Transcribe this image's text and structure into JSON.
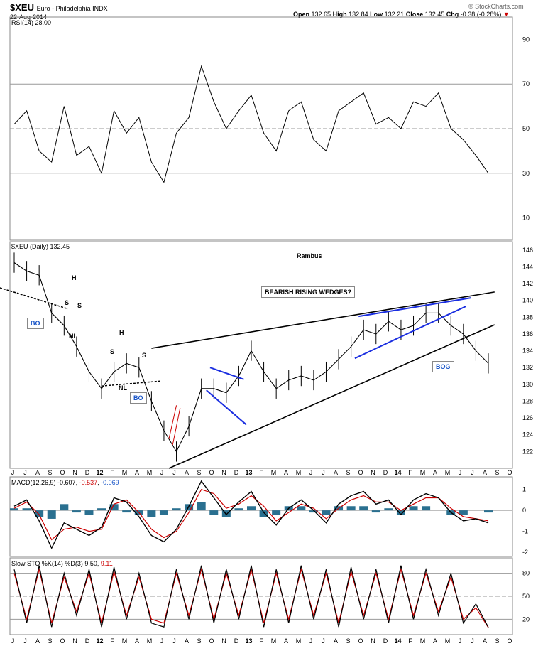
{
  "header": {
    "symbol": "$XEU",
    "name": "Euro - Philadelphia INDX",
    "date": "22-Aug-2014",
    "watermark": "© StockCharts.com",
    "open_label": "Open",
    "open": "132.65",
    "high_label": "High",
    "high": "132.84",
    "low_label": "Low",
    "low": "132.21",
    "close_label": "Close",
    "close": "132.45",
    "chg_label": "Chg",
    "chg": "-0.38 (-0.28%)"
  },
  "colors": {
    "price": "#000000",
    "rsi_overbought_fill": "#3c8c3c",
    "rsi_oversold_fill": "#8c5050",
    "macd_line": "#000000",
    "signal_line": "#cc0000",
    "histogram": "#2a7090",
    "trendline_blue": "#1a2ee0",
    "trendline_black": "#000000",
    "ma_pattern": "#cc0000",
    "label_text": "#1a56c8"
  },
  "chart_data": [
    {
      "type": "line",
      "panel": "rsi",
      "legend": "RSI(14) 28.00",
      "y_ticks": [
        10,
        30,
        50,
        70,
        90
      ],
      "ylim": [
        0,
        100
      ],
      "reference_lines": [
        70,
        50,
        30
      ],
      "x": [
        "2011-06",
        "2011-07",
        "2011-08",
        "2011-09",
        "2011-10",
        "2011-11",
        "2011-12",
        "2012-01",
        "2012-02",
        "2012-03",
        "2012-04",
        "2012-05",
        "2012-06",
        "2012-07",
        "2012-08",
        "2012-09",
        "2012-10",
        "2012-11",
        "2012-12",
        "2013-01",
        "2013-02",
        "2013-03",
        "2013-04",
        "2013-05",
        "2013-06",
        "2013-07",
        "2013-08",
        "2013-09",
        "2013-10",
        "2013-11",
        "2013-12",
        "2014-01",
        "2014-02",
        "2014-03",
        "2014-04",
        "2014-05",
        "2014-06",
        "2014-07",
        "2014-08"
      ],
      "values": [
        52,
        58,
        40,
        35,
        60,
        38,
        42,
        30,
        58,
        48,
        55,
        35,
        26,
        48,
        55,
        78,
        62,
        50,
        58,
        65,
        48,
        40,
        58,
        62,
        45,
        40,
        58,
        62,
        66,
        52,
        55,
        50,
        62,
        60,
        66,
        50,
        45,
        38,
        30
      ],
      "last": 28.0
    },
    {
      "type": "line",
      "panel": "price",
      "title": "Rambus",
      "legend": "$XEU (Daily) 132.45",
      "y_ticks": [
        122,
        124,
        126,
        128,
        130,
        132,
        134,
        136,
        138,
        140,
        142,
        144,
        146
      ],
      "ylim": [
        120,
        147
      ],
      "x_ticks": [
        "J",
        "J",
        "A",
        "S",
        "O",
        "N",
        "D",
        "12",
        "F",
        "M",
        "A",
        "M",
        "J",
        "J",
        "A",
        "S",
        "O",
        "N",
        "D",
        "13",
        "F",
        "M",
        "A",
        "M",
        "J",
        "J",
        "A",
        "S",
        "O",
        "N",
        "D",
        "14",
        "F",
        "M",
        "A",
        "M",
        "J",
        "J",
        "A",
        "S",
        "O"
      ],
      "x": [
        "2011-06",
        "2011-07",
        "2011-08",
        "2011-09",
        "2011-10",
        "2011-11",
        "2011-12",
        "2012-01",
        "2012-02",
        "2012-03",
        "2012-04",
        "2012-05",
        "2012-06",
        "2012-07",
        "2012-08",
        "2012-09",
        "2012-10",
        "2012-11",
        "2012-12",
        "2013-01",
        "2013-02",
        "2013-03",
        "2013-04",
        "2013-05",
        "2013-06",
        "2013-07",
        "2013-08",
        "2013-09",
        "2013-10",
        "2013-11",
        "2013-12",
        "2014-01",
        "2014-02",
        "2014-03",
        "2014-04",
        "2014-05",
        "2014-06",
        "2014-07",
        "2014-08"
      ],
      "values": [
        144.5,
        143.5,
        143.0,
        138.5,
        137.0,
        134.5,
        131.5,
        129.5,
        131.5,
        132.5,
        132.0,
        128.0,
        124.5,
        122.0,
        125.0,
        129.5,
        129.5,
        129.0,
        131.0,
        134.0,
        131.5,
        129.5,
        130.5,
        131.0,
        130.5,
        131.5,
        133.0,
        134.5,
        136.5,
        136.0,
        137.5,
        136.5,
        137.0,
        138.5,
        138.5,
        137.0,
        136.0,
        134.0,
        132.5
      ],
      "annotations": [
        "BEARISH RISING WEDGES?",
        "BO",
        "BO",
        "BOG",
        "H",
        "S",
        "S",
        "NL",
        "H",
        "S",
        "S",
        "NL"
      ],
      "last": 132.45
    },
    {
      "type": "line",
      "panel": "macd",
      "legend_prefix": "MACD(12,26,9)",
      "legend_macd": "-0.607",
      "legend_signal": "-0.537",
      "legend_hist": "-0.069",
      "y_ticks": [
        -2,
        -1,
        0,
        1
      ],
      "ylim": [
        -2.2,
        1.6
      ],
      "x": [
        "2011-06",
        "2011-07",
        "2011-08",
        "2011-09",
        "2011-10",
        "2011-11",
        "2011-12",
        "2012-01",
        "2012-02",
        "2012-03",
        "2012-04",
        "2012-05",
        "2012-06",
        "2012-07",
        "2012-08",
        "2012-09",
        "2012-10",
        "2012-11",
        "2012-12",
        "2013-01",
        "2013-02",
        "2013-03",
        "2013-04",
        "2013-05",
        "2013-06",
        "2013-07",
        "2013-08",
        "2013-09",
        "2013-10",
        "2013-11",
        "2013-12",
        "2014-01",
        "2014-02",
        "2014-03",
        "2014-04",
        "2014-05",
        "2014-06",
        "2014-07",
        "2014-08"
      ],
      "series": [
        {
          "name": "MACD",
          "values": [
            0.2,
            0.5,
            -0.5,
            -1.8,
            -0.6,
            -0.9,
            -1.2,
            -0.8,
            0.6,
            0.4,
            -0.3,
            -1.2,
            -1.5,
            -0.9,
            0.2,
            1.4,
            0.6,
            -0.2,
            0.4,
            0.9,
            -0.1,
            -0.7,
            0.1,
            0.5,
            0.0,
            -0.6,
            0.3,
            0.7,
            0.9,
            0.3,
            0.5,
            -0.2,
            0.5,
            0.8,
            0.6,
            -0.1,
            -0.5,
            -0.4,
            -0.6
          ]
        },
        {
          "name": "Signal",
          "values": [
            0.1,
            0.4,
            -0.2,
            -1.4,
            -0.9,
            -0.8,
            -1.0,
            -0.9,
            0.3,
            0.5,
            -0.1,
            -0.9,
            -1.3,
            -1.0,
            -0.1,
            1.0,
            0.8,
            0.1,
            0.3,
            0.7,
            0.2,
            -0.5,
            -0.1,
            0.3,
            0.1,
            -0.4,
            0.1,
            0.5,
            0.7,
            0.4,
            0.4,
            0.0,
            0.3,
            0.6,
            0.6,
            0.1,
            -0.3,
            -0.4,
            -0.5
          ]
        }
      ]
    },
    {
      "type": "line",
      "panel": "stochastic",
      "legend_prefix": "Slow STO %K(14) %D(3)",
      "legend_k": "9.50",
      "legend_d": "9.11",
      "y_ticks": [
        20,
        50,
        80
      ],
      "ylim": [
        0,
        100
      ],
      "reference_lines": [
        80,
        50,
        20
      ],
      "x": [
        "2011-06",
        "2011-07",
        "2011-08",
        "2011-09",
        "2011-10",
        "2011-11",
        "2011-12",
        "2012-01",
        "2012-02",
        "2012-03",
        "2012-04",
        "2012-05",
        "2012-06",
        "2012-07",
        "2012-08",
        "2012-09",
        "2012-10",
        "2012-11",
        "2012-12",
        "2013-01",
        "2013-02",
        "2013-03",
        "2013-04",
        "2013-05",
        "2013-06",
        "2013-07",
        "2013-08",
        "2013-09",
        "2013-10",
        "2013-11",
        "2013-12",
        "2014-01",
        "2014-02",
        "2014-03",
        "2014-04",
        "2014-05",
        "2014-06",
        "2014-07",
        "2014-08"
      ],
      "series": [
        {
          "name": "%K",
          "values": [
            85,
            15,
            90,
            10,
            80,
            25,
            85,
            10,
            88,
            20,
            80,
            15,
            10,
            85,
            20,
            90,
            15,
            85,
            20,
            90,
            10,
            85,
            15,
            90,
            20,
            85,
            10,
            88,
            20,
            85,
            15,
            90,
            20,
            85,
            25,
            80,
            15,
            40,
            9.5
          ]
        },
        {
          "name": "%D",
          "values": [
            80,
            20,
            85,
            15,
            75,
            30,
            80,
            15,
            82,
            25,
            75,
            20,
            15,
            80,
            25,
            85,
            20,
            80,
            25,
            85,
            15,
            80,
            20,
            85,
            25,
            80,
            15,
            82,
            25,
            80,
            20,
            85,
            25,
            80,
            30,
            75,
            20,
            35,
            9.11
          ]
        }
      ]
    }
  ]
}
